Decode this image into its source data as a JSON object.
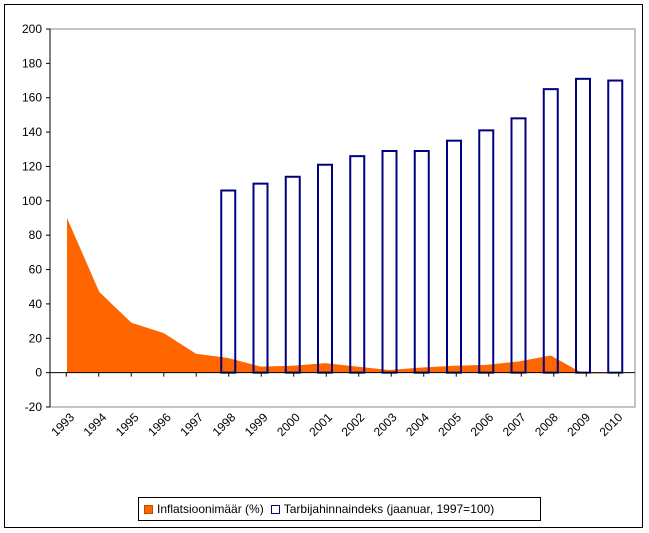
{
  "chart_data": {
    "type": "bar",
    "categories": [
      "1993",
      "1994",
      "1995",
      "1996",
      "1997",
      "1998",
      "1999",
      "2000",
      "2001",
      "2002",
      "2003",
      "2004",
      "2005",
      "2006",
      "2007",
      "2008",
      "2009",
      "2010"
    ],
    "series": [
      {
        "name": "Inflatsioonimäär (%)",
        "kind": "area",
        "color": "#ff6600",
        "values": [
          90,
          47,
          29,
          23,
          11,
          8.5,
          3.5,
          4,
          5.5,
          3.5,
          1.5,
          3,
          4,
          4.5,
          6.5,
          10,
          -0.5,
          -0.5
        ]
      },
      {
        "name": "Tarbijahinnaindeks (jaanuar, 1997=100)",
        "kind": "bar",
        "color": "#000080",
        "values": [
          null,
          null,
          null,
          null,
          null,
          106,
          110,
          114,
          121,
          126,
          129,
          129,
          135,
          141,
          148,
          165,
          171,
          170
        ]
      }
    ],
    "ylim": [
      -20,
      200
    ],
    "yticks": [
      "-20",
      "0",
      "20",
      "40",
      "60",
      "80",
      "100",
      "120",
      "140",
      "160",
      "180",
      "200"
    ],
    "legend_position": "bottom",
    "grid": false
  }
}
